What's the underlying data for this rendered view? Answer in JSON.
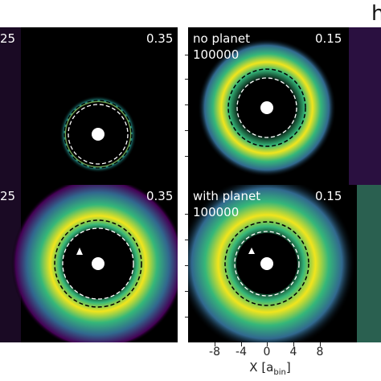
{
  "figure": {
    "corner_title": "h"
  },
  "panels": [
    {
      "id": "top-left-partial",
      "left_label": "25",
      "right_label": "0.35",
      "label_lines": []
    },
    {
      "id": "top-middle",
      "left_label": "",
      "right_label": "0.15",
      "label_lines": [
        "no planet",
        "100000"
      ]
    },
    {
      "id": "bottom-left-partial",
      "left_label": "25",
      "right_label": "0.35",
      "label_lines": []
    },
    {
      "id": "bottom-middle",
      "left_label": "",
      "right_label": "0.15",
      "label_lines": [
        "with planet",
        "100000"
      ]
    }
  ],
  "x_axis": {
    "label_prefix": "X [a",
    "label_sub": "bin",
    "label_suffix": "]",
    "ticks": [
      "-8",
      "-4",
      "0",
      "4",
      "8"
    ]
  },
  "colors": {
    "ring_yellow": "#f1e51d",
    "ring_green": "#35b779",
    "ring_teal": "#21918c",
    "ring_blue": "#3b528b",
    "ring_purple": "#440154",
    "white_dashed": "#ffffff",
    "black_dashed": "#000000"
  }
}
